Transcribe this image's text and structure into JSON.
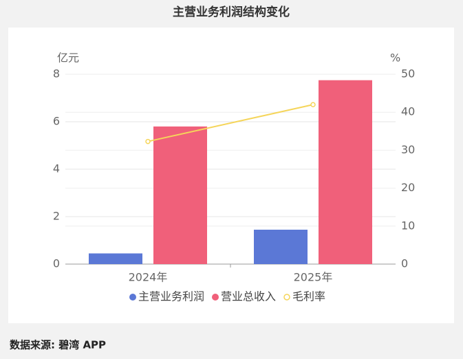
{
  "chart_data": {
    "type": "bar",
    "title": "主营业务利润结构变化",
    "y_label": "亿元",
    "y2_label": "%",
    "categories": [
      "2024年",
      "2025年"
    ],
    "series": [
      {
        "name": "主营业务利润",
        "color": "#5b78d6",
        "values": [
          0.45,
          1.45
        ]
      },
      {
        "name": "营业总收入",
        "color": "#f0607a",
        "values": [
          5.8,
          7.75
        ]
      },
      {
        "name": "毛利率",
        "color": "#f5d55a",
        "type": "line",
        "axis": "y2",
        "values": [
          32.3,
          42
        ]
      }
    ],
    "ylim": [
      0,
      8
    ],
    "yticks": [
      0,
      2,
      4,
      6,
      8
    ],
    "y2lim": [
      0,
      50
    ],
    "y2ticks": [
      0,
      10,
      20,
      30,
      40,
      50
    ],
    "grid": true,
    "source": "数据来源: 碧湾 APP"
  }
}
